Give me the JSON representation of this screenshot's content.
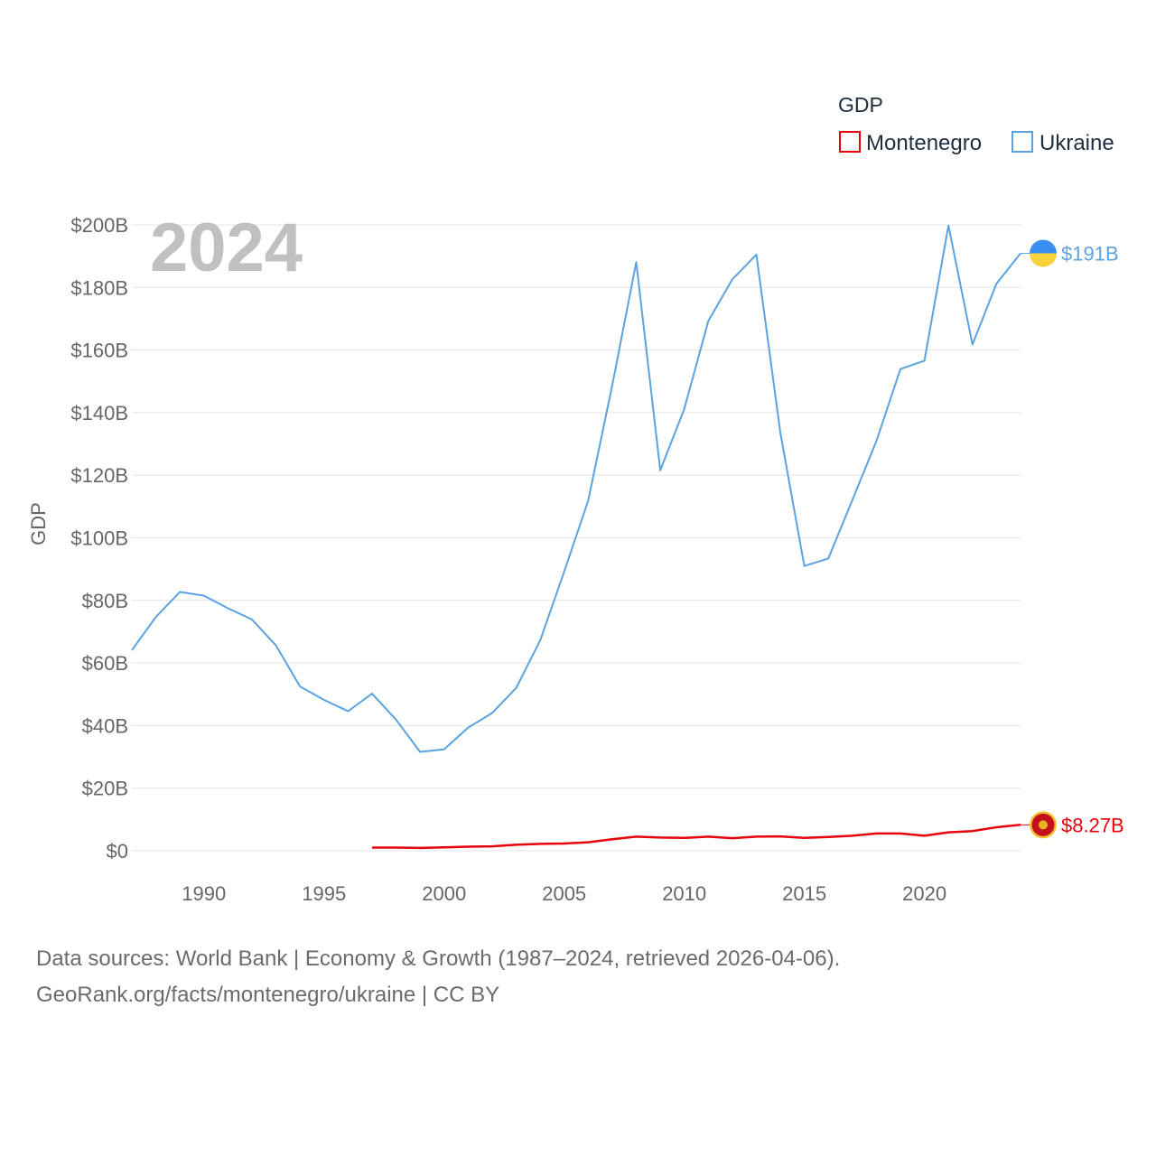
{
  "chart_data": {
    "type": "line",
    "title": "GDP",
    "year_label": "2024",
    "ylabel": "GDP",
    "xlabel": "",
    "xlim": [
      1987,
      2024
    ],
    "ylim": [
      0,
      200
    ],
    "y_ticks": [
      0,
      20,
      40,
      60,
      80,
      100,
      120,
      140,
      160,
      180,
      200
    ],
    "y_tick_labels": [
      "$0",
      "$20B",
      "$40B",
      "$60B",
      "$80B",
      "$100B",
      "$120B",
      "$140B",
      "$160B",
      "$180B",
      "$200B"
    ],
    "x_ticks": [
      1990,
      1995,
      2000,
      2005,
      2010,
      2015,
      2020
    ],
    "x_tick_labels": [
      "1990",
      "1995",
      "2000",
      "2005",
      "2010",
      "2015",
      "2020"
    ],
    "grid": true,
    "legend_position": "top-right",
    "legend_title": "GDP",
    "series": [
      {
        "name": "Montenegro",
        "color": "#e8000b",
        "end_label": "$8.27B",
        "x": [
          1997,
          1998,
          1999,
          2000,
          2001,
          2002,
          2003,
          2004,
          2005,
          2006,
          2007,
          2008,
          2009,
          2010,
          2011,
          2012,
          2013,
          2014,
          2015,
          2016,
          2017,
          2018,
          2019,
          2020,
          2021,
          2022,
          2023,
          2024
        ],
        "values": [
          1.0,
          1.0,
          0.9,
          1.1,
          1.3,
          1.4,
          1.9,
          2.2,
          2.3,
          2.7,
          3.7,
          4.5,
          4.2,
          4.1,
          4.5,
          4.0,
          4.5,
          4.6,
          4.1,
          4.4,
          4.8,
          5.5,
          5.5,
          4.8,
          5.9,
          6.3,
          7.5,
          8.27
        ]
      },
      {
        "name": "Ukraine",
        "color": "#5ba3e0",
        "end_label": "$191B",
        "x": [
          1987,
          1988,
          1989,
          1990,
          1991,
          1992,
          1993,
          1994,
          1995,
          1996,
          1997,
          1998,
          1999,
          2000,
          2001,
          2002,
          2003,
          2004,
          2005,
          2006,
          2007,
          2008,
          2009,
          2010,
          2011,
          2012,
          2013,
          2014,
          2015,
          2016,
          2017,
          2018,
          2019,
          2020,
          2021,
          2022,
          2023,
          2024
        ],
        "values": [
          64.1,
          74.7,
          82.7,
          81.5,
          77.5,
          73.9,
          65.6,
          52.5,
          48.2,
          44.6,
          50.2,
          41.9,
          31.6,
          32.4,
          39.3,
          44.0,
          52.0,
          67.2,
          89.2,
          111.9,
          148.7,
          188.1,
          121.6,
          141.2,
          169.3,
          182.6,
          190.5,
          133.5,
          91.0,
          93.4,
          112.1,
          130.9,
          153.9,
          156.6,
          199.8,
          161.8,
          181.2,
          190.9
        ]
      }
    ],
    "source_line_1": "Data sources: World Bank | Economy & Growth (1987–2024, retrieved 2026-04-06).",
    "source_line_2": "GeoRank.org/facts/montenegro/ukraine | CC BY"
  }
}
